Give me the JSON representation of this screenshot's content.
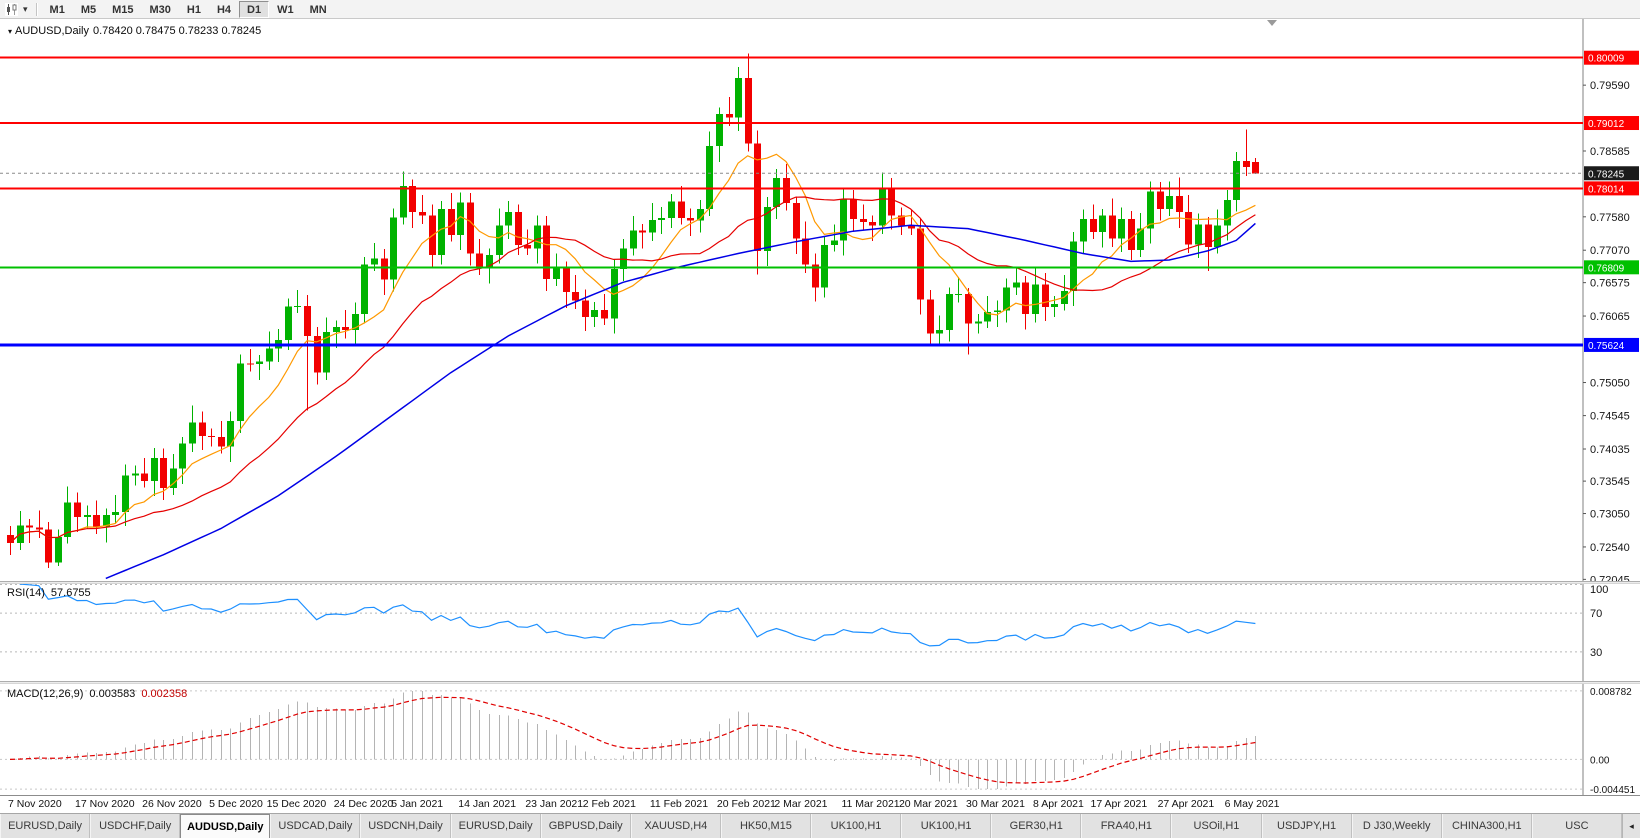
{
  "toolbar": {
    "timeframes": [
      "M1",
      "M5",
      "M15",
      "M30",
      "H1",
      "H4",
      "D1",
      "W1",
      "MN"
    ],
    "active_timeframe": "D1"
  },
  "header": {
    "symbol_title": "AUDUSD,Daily",
    "ohlc_text": "0.78420 0.78475 0.78233 0.78245"
  },
  "tabs": {
    "items": [
      "EURUSD,Daily",
      "USDCHF,Daily",
      "AUDUSD,Daily",
      "USDCAD,Daily",
      "USDCNH,Daily",
      "EURUSD,Daily",
      "GBPUSD,Daily",
      "XAUUSD,H4",
      "HK50,M15",
      "UK100,H1",
      "UK100,H1",
      "GER30,H1",
      "FRA40,H1",
      "USOil,H1",
      "USDJPY,H1",
      "D J30,Weekly",
      "CHINA300,H1",
      "USC"
    ],
    "active_index": 2,
    "scroll_arrow": "◂"
  },
  "chart_data": {
    "type": "candlestick",
    "symbol": "AUDUSD",
    "timeframe": "Daily",
    "current": {
      "open": "0.78420",
      "high": "0.78475",
      "low": "0.78233",
      "close": "0.78245"
    },
    "bid": 0.78245,
    "bid_label": "0.78245",
    "price_axis": {
      "min": 0.7202,
      "max": 0.806,
      "ticks": [
        "0.79590",
        "0.78585",
        "0.77580",
        "0.77070",
        "0.76575",
        "0.76065",
        "0.75050",
        "0.74545",
        "0.74035",
        "0.73545",
        "0.73050",
        "0.72540",
        "0.72045"
      ]
    },
    "x_axis": {
      "labels": [
        [
          "7 Nov 2020",
          0
        ],
        [
          "17 Nov 2020",
          7
        ],
        [
          "26 Nov 2020",
          14
        ],
        [
          "5 Dec 2020",
          21
        ],
        [
          "15 Dec 2020",
          27
        ],
        [
          "24 Dec 2020",
          34
        ],
        [
          "5 Jan 2021",
          40
        ],
        [
          "14 Jan 2021",
          47
        ],
        [
          "23 Jan 2021",
          54
        ],
        [
          "2 Feb 2021",
          60
        ],
        [
          "11 Feb 2021",
          67
        ],
        [
          "20 Feb 2021",
          74
        ],
        [
          "2 Mar 2021",
          80
        ],
        [
          "11 Mar 2021",
          87
        ],
        [
          "20 Mar 2021",
          93
        ],
        [
          "30 Mar 2021",
          100
        ],
        [
          "8 Apr 2021",
          107
        ],
        [
          "17 Apr 2021",
          113
        ],
        [
          "27 Apr 2021",
          120
        ],
        [
          "6 May 2021",
          127
        ]
      ]
    },
    "h_lines": [
      {
        "price": 0.80009,
        "label": "0.80009",
        "color": "#ff0000",
        "width": 2
      },
      {
        "price": 0.79012,
        "label": "0.79012",
        "color": "#ff0000",
        "width": 2
      },
      {
        "price": 0.78014,
        "label": "0.78014",
        "color": "#ff0000",
        "width": 2
      },
      {
        "price": 0.76809,
        "label": "0.76809",
        "color": "#00c000",
        "width": 2
      },
      {
        "price": 0.75624,
        "label": "0.75624",
        "color": "#0000ff",
        "width": 3
      }
    ],
    "colors": {
      "bull": "#00b200",
      "bear": "#f20000",
      "ma_fast": "#ff9900",
      "ma_mid": "#e60000",
      "ma_slow": "#0000e6",
      "axis_text": "#141414"
    },
    "ma_periods": {
      "fast": 8,
      "mid": 20
    },
    "ma_slow_points": [
      [
        10,
        0.7206
      ],
      [
        16,
        0.7242
      ],
      [
        22,
        0.7282
      ],
      [
        28,
        0.7332
      ],
      [
        34,
        0.7392
      ],
      [
        40,
        0.7456
      ],
      [
        46,
        0.752
      ],
      [
        52,
        0.7576
      ],
      [
        58,
        0.7622
      ],
      [
        64,
        0.7658
      ],
      [
        70,
        0.7682
      ],
      [
        76,
        0.7702
      ],
      [
        82,
        0.772
      ],
      [
        88,
        0.7736
      ],
      [
        94,
        0.7745
      ],
      [
        100,
        0.774
      ],
      [
        106,
        0.7722
      ],
      [
        112,
        0.7702
      ],
      [
        117,
        0.769
      ],
      [
        121,
        0.7692
      ],
      [
        125,
        0.7706
      ],
      [
        128,
        0.7722
      ],
      [
        130,
        0.7748
      ]
    ],
    "candles": [
      [
        0.7272,
        0.7286,
        0.7242,
        0.726
      ],
      [
        0.726,
        0.7309,
        0.7249,
        0.7287
      ],
      [
        0.7287,
        0.7297,
        0.726,
        0.7284
      ],
      [
        0.7284,
        0.731,
        0.7268,
        0.7281
      ],
      [
        0.7281,
        0.7292,
        0.7222,
        0.723
      ],
      [
        0.723,
        0.7281,
        0.7225,
        0.7269
      ],
      [
        0.7269,
        0.7346,
        0.7259,
        0.7322
      ],
      [
        0.7322,
        0.7337,
        0.7277,
        0.73
      ],
      [
        0.73,
        0.7317,
        0.7282,
        0.7303
      ],
      [
        0.7303,
        0.7325,
        0.7274,
        0.7285
      ],
      [
        0.7285,
        0.7313,
        0.7261,
        0.7303
      ],
      [
        0.7303,
        0.7333,
        0.729,
        0.7307
      ],
      [
        0.7307,
        0.738,
        0.7286,
        0.7363
      ],
      [
        0.7363,
        0.7378,
        0.7348,
        0.7366
      ],
      [
        0.7366,
        0.739,
        0.7345,
        0.7355
      ],
      [
        0.7355,
        0.7405,
        0.7332,
        0.739
      ],
      [
        0.739,
        0.7404,
        0.7326,
        0.7344
      ],
      [
        0.7344,
        0.7396,
        0.7333,
        0.7374
      ],
      [
        0.7374,
        0.7422,
        0.735,
        0.7412
      ],
      [
        0.7412,
        0.747,
        0.7399,
        0.7444
      ],
      [
        0.7444,
        0.7461,
        0.7402,
        0.7423
      ],
      [
        0.7423,
        0.7435,
        0.7407,
        0.7422
      ],
      [
        0.7422,
        0.7446,
        0.7397,
        0.7407
      ],
      [
        0.7407,
        0.7461,
        0.7384,
        0.7446
      ],
      [
        0.7446,
        0.7548,
        0.7428,
        0.7534
      ],
      [
        0.7534,
        0.7556,
        0.7522,
        0.7533
      ],
      [
        0.7533,
        0.7547,
        0.7509,
        0.7537
      ],
      [
        0.7537,
        0.7583,
        0.7524,
        0.7557
      ],
      [
        0.7557,
        0.7587,
        0.7536,
        0.757
      ],
      [
        0.757,
        0.7633,
        0.7555,
        0.7621
      ],
      [
        0.7621,
        0.7646,
        0.7611,
        0.7622
      ],
      [
        0.7622,
        0.7639,
        0.7462,
        0.7576
      ],
      [
        0.7576,
        0.759,
        0.7502,
        0.752
      ],
      [
        0.752,
        0.7604,
        0.7509,
        0.7582
      ],
      [
        0.7582,
        0.76,
        0.7558,
        0.759
      ],
      [
        0.759,
        0.7616,
        0.7572,
        0.7585
      ],
      [
        0.7585,
        0.7627,
        0.7564,
        0.761
      ],
      [
        0.761,
        0.7697,
        0.7595,
        0.7685
      ],
      [
        0.7685,
        0.7718,
        0.7675,
        0.7694
      ],
      [
        0.7694,
        0.7709,
        0.7639,
        0.7662
      ],
      [
        0.7662,
        0.7771,
        0.7644,
        0.7757
      ],
      [
        0.7757,
        0.7827,
        0.7746,
        0.7805
      ],
      [
        0.7805,
        0.7815,
        0.7741,
        0.7765
      ],
      [
        0.7765,
        0.7791,
        0.7747,
        0.776
      ],
      [
        0.776,
        0.7777,
        0.7679,
        0.77
      ],
      [
        0.77,
        0.7782,
        0.7685,
        0.777
      ],
      [
        0.777,
        0.7794,
        0.772,
        0.773
      ],
      [
        0.773,
        0.7795,
        0.7707,
        0.778
      ],
      [
        0.778,
        0.7794,
        0.7684,
        0.7702
      ],
      [
        0.7702,
        0.7724,
        0.7669,
        0.768
      ],
      [
        0.768,
        0.771,
        0.7656,
        0.77
      ],
      [
        0.77,
        0.7771,
        0.7687,
        0.7745
      ],
      [
        0.7745,
        0.7782,
        0.7724,
        0.7765
      ],
      [
        0.7765,
        0.7777,
        0.77,
        0.7715
      ],
      [
        0.7715,
        0.7739,
        0.77,
        0.771
      ],
      [
        0.771,
        0.776,
        0.7687,
        0.7745
      ],
      [
        0.7745,
        0.7759,
        0.7645,
        0.7663
      ],
      [
        0.7663,
        0.7702,
        0.7652,
        0.768
      ],
      [
        0.768,
        0.769,
        0.7619,
        0.7643
      ],
      [
        0.7643,
        0.7669,
        0.7617,
        0.763
      ],
      [
        0.763,
        0.7647,
        0.7584,
        0.7605
      ],
      [
        0.7605,
        0.7628,
        0.759,
        0.7616
      ],
      [
        0.7616,
        0.764,
        0.7593,
        0.7603
      ],
      [
        0.7603,
        0.7693,
        0.758,
        0.7678
      ],
      [
        0.7678,
        0.7724,
        0.766,
        0.771
      ],
      [
        0.771,
        0.7759,
        0.7699,
        0.7737
      ],
      [
        0.7737,
        0.7747,
        0.771,
        0.7734
      ],
      [
        0.7734,
        0.7779,
        0.7721,
        0.7753
      ],
      [
        0.7753,
        0.7773,
        0.7732,
        0.7756
      ],
      [
        0.7756,
        0.7793,
        0.7741,
        0.7781
      ],
      [
        0.7781,
        0.7805,
        0.7746,
        0.7756
      ],
      [
        0.7756,
        0.7771,
        0.7729,
        0.7752
      ],
      [
        0.7752,
        0.7784,
        0.7734,
        0.777
      ],
      [
        0.777,
        0.7888,
        0.7759,
        0.7866
      ],
      [
        0.7866,
        0.7925,
        0.7842,
        0.7915
      ],
      [
        0.7915,
        0.7941,
        0.7897,
        0.791
      ],
      [
        0.791,
        0.7987,
        0.7889,
        0.797
      ],
      [
        0.797,
        0.8007,
        0.7858,
        0.787
      ],
      [
        0.787,
        0.789,
        0.767,
        0.7706
      ],
      [
        0.7706,
        0.7788,
        0.7683,
        0.7773
      ],
      [
        0.7773,
        0.7831,
        0.7755,
        0.7817
      ],
      [
        0.7817,
        0.7839,
        0.7768,
        0.7779
      ],
      [
        0.7779,
        0.7789,
        0.7701,
        0.7725
      ],
      [
        0.7725,
        0.7751,
        0.7672,
        0.7685
      ],
      [
        0.7685,
        0.7702,
        0.7629,
        0.765
      ],
      [
        0.765,
        0.7727,
        0.7635,
        0.7715
      ],
      [
        0.7715,
        0.7746,
        0.7705,
        0.7722
      ],
      [
        0.7722,
        0.78,
        0.7699,
        0.7785
      ],
      [
        0.7785,
        0.7799,
        0.7737,
        0.7755
      ],
      [
        0.7755,
        0.7777,
        0.7739,
        0.775
      ],
      [
        0.775,
        0.776,
        0.7721,
        0.7745
      ],
      [
        0.7745,
        0.7826,
        0.7732,
        0.78
      ],
      [
        0.78,
        0.7817,
        0.7739,
        0.776
      ],
      [
        0.776,
        0.7772,
        0.773,
        0.7745
      ],
      [
        0.7745,
        0.7769,
        0.773,
        0.774
      ],
      [
        0.774,
        0.7755,
        0.7609,
        0.7632
      ],
      [
        0.7632,
        0.7646,
        0.7562,
        0.758
      ],
      [
        0.758,
        0.7607,
        0.7562,
        0.7585
      ],
      [
        0.7585,
        0.765,
        0.7568,
        0.764
      ],
      [
        0.764,
        0.7666,
        0.7627,
        0.764
      ],
      [
        0.764,
        0.7649,
        0.7548,
        0.7595
      ],
      [
        0.7595,
        0.761,
        0.758,
        0.7598
      ],
      [
        0.7598,
        0.7637,
        0.7588,
        0.7613
      ],
      [
        0.7613,
        0.763,
        0.759,
        0.7615
      ],
      [
        0.7615,
        0.7664,
        0.7597,
        0.765
      ],
      [
        0.765,
        0.768,
        0.7639,
        0.7658
      ],
      [
        0.7658,
        0.7668,
        0.7586,
        0.761
      ],
      [
        0.761,
        0.7681,
        0.7597,
        0.7655
      ],
      [
        0.7655,
        0.7672,
        0.7599,
        0.762
      ],
      [
        0.762,
        0.7637,
        0.7605,
        0.7625
      ],
      [
        0.7625,
        0.7669,
        0.7615,
        0.7645
      ],
      [
        0.7645,
        0.7735,
        0.7622,
        0.772
      ],
      [
        0.772,
        0.7769,
        0.7702,
        0.7755
      ],
      [
        0.7755,
        0.7777,
        0.7724,
        0.7735
      ],
      [
        0.7735,
        0.777,
        0.7711,
        0.776
      ],
      [
        0.776,
        0.7786,
        0.7712,
        0.7725
      ],
      [
        0.7725,
        0.7772,
        0.7704,
        0.7755
      ],
      [
        0.7755,
        0.7767,
        0.7692,
        0.7707
      ],
      [
        0.7707,
        0.7764,
        0.7697,
        0.774
      ],
      [
        0.774,
        0.7812,
        0.7717,
        0.7797
      ],
      [
        0.7797,
        0.7811,
        0.7752,
        0.777
      ],
      [
        0.777,
        0.7812,
        0.7759,
        0.779
      ],
      [
        0.779,
        0.7818,
        0.7741,
        0.7765
      ],
      [
        0.7765,
        0.7791,
        0.7703,
        0.7716
      ],
      [
        0.7716,
        0.7763,
        0.7695,
        0.7746
      ],
      [
        0.7746,
        0.7758,
        0.7675,
        0.7712
      ],
      [
        0.7712,
        0.7769,
        0.7702,
        0.7745
      ],
      [
        0.7745,
        0.7799,
        0.7722,
        0.7784
      ],
      [
        0.7784,
        0.7857,
        0.7766,
        0.7843
      ],
      [
        0.7843,
        0.7891,
        0.782,
        0.7834
      ],
      [
        0.7842,
        0.78475,
        0.78233,
        0.78245
      ]
    ],
    "indicators": {
      "rsi": {
        "name": "RSI(14)",
        "period": 14,
        "value": "57.6755",
        "levels": [
          "100",
          "70",
          "30"
        ],
        "color": "#1e90ff"
      },
      "macd": {
        "name": "MACD(12,26,9)",
        "fast": 12,
        "slow": 26,
        "signal_period": 9,
        "value_main": "0.003583",
        "value_signal": "0.002358",
        "axis_labels": [
          "0.008782",
          "0.00",
          "-0.004451"
        ],
        "hist_color": "#b4b4b4",
        "signal_color": "#e00000"
      }
    }
  }
}
